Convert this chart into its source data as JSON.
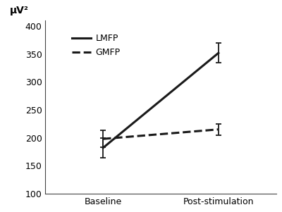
{
  "x_labels": [
    "Baseline",
    "Post-stimulation"
  ],
  "x_positions": [
    0,
    1
  ],
  "lmfp_values": [
    182,
    352
  ],
  "lmfp_errors": [
    18,
    18
  ],
  "gmfp_values": [
    198,
    215
  ],
  "gmfp_errors": [
    15,
    10
  ],
  "ylim": [
    100,
    410
  ],
  "yticks": [
    100,
    150,
    200,
    250,
    300,
    350,
    400
  ],
  "ylabel": "μV²",
  "line_color": "#1a1a1a",
  "background_color": "#ffffff",
  "legend_lmfp": "LMFP",
  "legend_gmfp": "GMFP",
  "axis_fontsize": 10,
  "tick_fontsize": 9,
  "legend_fontsize": 9,
  "capsize": 3,
  "linewidth": 2.2,
  "errorbar_linewidth": 1.3,
  "capthick": 1.3
}
